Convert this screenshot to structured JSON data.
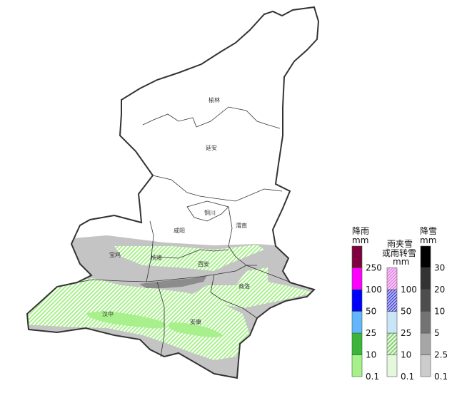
{
  "cities": [
    {
      "name": "榆林",
      "key": "yulin"
    },
    {
      "name": "延安",
      "key": "yanan"
    },
    {
      "name": "铜川",
      "key": "tongchuan"
    },
    {
      "name": "渭南",
      "key": "weinan"
    },
    {
      "name": "咸阳",
      "key": "xianyang"
    },
    {
      "name": "宝鸡",
      "key": "baoji"
    },
    {
      "name": "杨凌",
      "key": "yangling"
    },
    {
      "name": "西安",
      "key": "xian"
    },
    {
      "name": "商洛",
      "key": "shangluo"
    },
    {
      "name": "汉中",
      "key": "hanzhong"
    },
    {
      "name": "安康",
      "key": "ankang"
    }
  ],
  "legend": {
    "rain": {
      "title": "降雨",
      "unit": "mm",
      "colors": [
        "#a8f08c",
        "#3cb43c",
        "#64b4ff",
        "#0000ff",
        "#ff00ff",
        "#800040"
      ],
      "ticks": [
        "0.1",
        "10",
        "25",
        "50",
        "100",
        "250"
      ]
    },
    "sleet": {
      "title": "雨夹雪",
      "title2": "或雨转雪",
      "unit": "mm",
      "colors": [
        "#e4f8dc",
        "#a8e09a",
        "#c8e6f8",
        "#7070e0",
        "#f0a0f0"
      ],
      "hatched": [
        false,
        true,
        false,
        true,
        true
      ],
      "ticks": [
        "0.1",
        "10",
        "25",
        "50",
        "100"
      ]
    },
    "snow": {
      "title": "降雪",
      "unit": "mm",
      "colors": [
        "#cccccc",
        "#a6a6a6",
        "#737373",
        "#4d4d4d",
        "#333333",
        "#000000"
      ],
      "ticks": [
        "0.1",
        "2.5",
        "5",
        "10",
        "20",
        "30"
      ]
    }
  },
  "colors": {
    "snow_light": "#c4c4c4",
    "snow_moderate": "#8c8c8c",
    "rain_light": "#a8f08c",
    "boundary": "#333333"
  }
}
